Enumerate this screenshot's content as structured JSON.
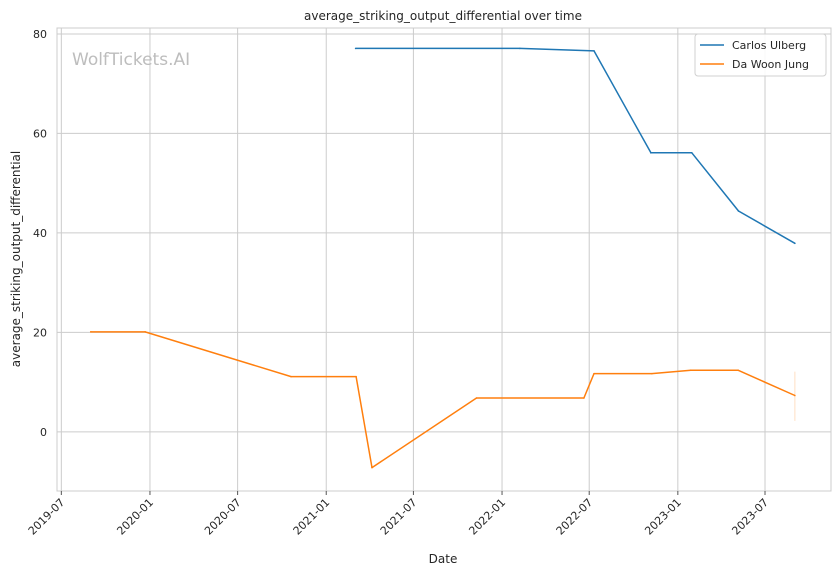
{
  "chart_data": {
    "type": "line",
    "title": "average_striking_output_differential over time",
    "xlabel": "Date",
    "ylabel": "average_striking_output_differential",
    "watermark": "WolfTickets.AI",
    "xlim": [
      "2019-06-22",
      "2023-11-15"
    ],
    "ylim": [
      -11.9,
      81.2
    ],
    "yticks": [
      0,
      20,
      40,
      60,
      80
    ],
    "xticks": [
      "2019-07",
      "2020-01",
      "2020-07",
      "2021-01",
      "2021-07",
      "2022-01",
      "2022-07",
      "2023-01",
      "2023-07"
    ],
    "grid": true,
    "legend_position": "top-right",
    "series": [
      {
        "name": "Carlos Ulberg",
        "color": "#1f77b4",
        "x": [
          "2021-03-03",
          "2022-02-07",
          "2022-07-11",
          "2022-11-06",
          "2023-01-30",
          "2023-05-07",
          "2023-09-01"
        ],
        "values": [
          77.1,
          77.1,
          76.6,
          56.1,
          56.1,
          44.4,
          37.9
        ]
      },
      {
        "name": "Da Woon Jung",
        "color": "#ff7f0e",
        "x": [
          "2019-08-31",
          "2019-12-22",
          "2020-10-20",
          "2021-03-04",
          "2021-04-06",
          "2021-11-09",
          "2022-06-20",
          "2022-07-11",
          "2022-11-08",
          "2023-01-28",
          "2023-05-06",
          "2023-09-01"
        ],
        "values": [
          20.1,
          20.1,
          11.1,
          11.1,
          -7.2,
          6.8,
          6.8,
          11.7,
          11.7,
          12.4,
          12.4,
          7.3
        ],
        "band_at_last": [
          2.2,
          12.1
        ]
      }
    ]
  }
}
